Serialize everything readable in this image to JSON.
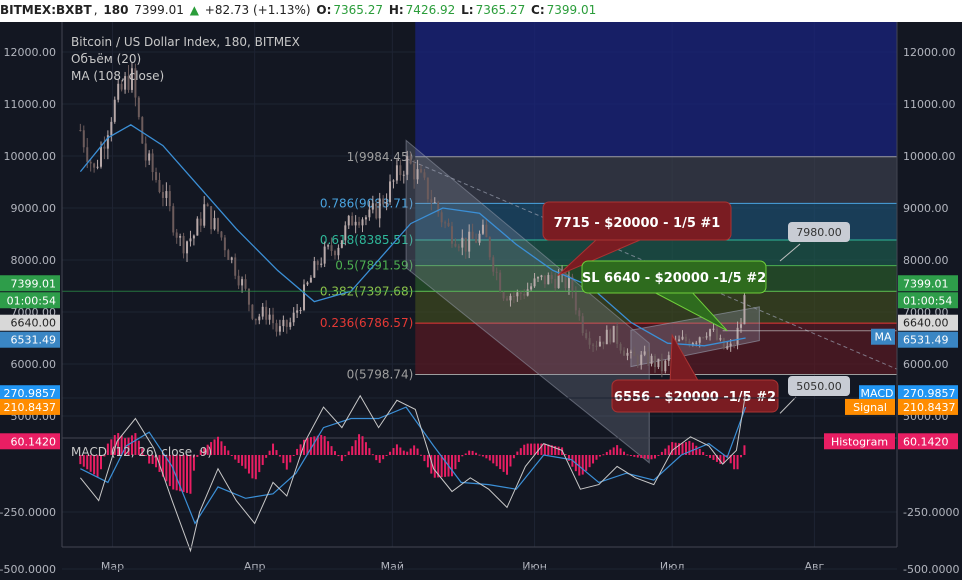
{
  "header": {
    "symbol": "BITMEX:BXBT",
    "interval": "180",
    "last": "7399.01",
    "change": "+82.73 (+1.13%)",
    "o_label": "O:",
    "o": "7365.27",
    "h_label": "H:",
    "h": "7426.92",
    "l_label": "L:",
    "l": "7365.27",
    "c_label": "C:",
    "c": "7399.01"
  },
  "legend": {
    "title": "Bitcoin / US Dollar Index, 180, BITMEX",
    "volume": "Объём (20)",
    "ma": "MA (108, close)",
    "macd": "MACD (12, 26, close, 9)"
  },
  "chart_data": [
    {
      "type": "candlestick",
      "title": "Bitcoin / US Dollar Index, 180, BITMEX",
      "ylim": [
        4500,
        12500
      ],
      "y_ticks": [
        "12000.00",
        "11000.00",
        "10000.00",
        "9000.00",
        "8000.00",
        "7000.00",
        "6000.00",
        "5000.00"
      ],
      "x_ticks": [
        "Мар",
        "Апр",
        "Май",
        "Июн",
        "Июл",
        "Авг"
      ],
      "price_path": [
        [
          "2018-02-22",
          10500
        ],
        [
          "2018-02-25",
          9700
        ],
        [
          "2018-03-01",
          10900
        ],
        [
          "2018-03-05",
          11600
        ],
        [
          "2018-03-08",
          10000
        ],
        [
          "2018-03-12",
          9300
        ],
        [
          "2018-03-16",
          8300
        ],
        [
          "2018-03-19",
          8500
        ],
        [
          "2018-03-21",
          9000
        ],
        [
          "2018-03-25",
          8400
        ],
        [
          "2018-03-29",
          7600
        ],
        [
          "2018-04-01",
          6900
        ],
        [
          "2018-04-04",
          7000
        ],
        [
          "2018-04-06",
          6600
        ],
        [
          "2018-04-09",
          6800
        ],
        [
          "2018-04-12",
          7400
        ],
        [
          "2018-04-15",
          8000
        ],
        [
          "2018-04-19",
          8300
        ],
        [
          "2018-04-23",
          8900
        ],
        [
          "2018-04-26",
          8800
        ],
        [
          "2018-04-30",
          9300
        ],
        [
          "2018-05-04",
          9900
        ],
        [
          "2018-05-06",
          9700
        ],
        [
          "2018-05-10",
          9100
        ],
        [
          "2018-05-13",
          8600
        ],
        [
          "2018-05-17",
          8300
        ],
        [
          "2018-05-21",
          8500
        ],
        [
          "2018-05-25",
          7400
        ],
        [
          "2018-05-28",
          7300
        ],
        [
          "2018-06-02",
          7600
        ],
        [
          "2018-06-06",
          7650
        ],
        [
          "2018-06-09",
          7500
        ],
        [
          "2018-06-11",
          6800
        ],
        [
          "2018-06-14",
          6400
        ],
        [
          "2018-06-18",
          6600
        ],
        [
          "2018-06-22",
          6100
        ],
        [
          "2018-06-26",
          6100
        ],
        [
          "2018-06-29",
          5900
        ],
        [
          "2018-07-02",
          6400
        ],
        [
          "2018-07-06",
          6500
        ],
        [
          "2018-07-09",
          6700
        ],
        [
          "2018-07-12",
          6300
        ],
        [
          "2018-07-14",
          6300
        ],
        [
          "2018-07-16",
          6800
        ],
        [
          "2018-07-17",
          7400
        ]
      ],
      "ma": {
        "name": "MA (108, close)",
        "color": "#3b8fd6",
        "path": [
          [
            "2018-02-22",
            9700
          ],
          [
            "2018-02-28",
            10350
          ],
          [
            "2018-03-05",
            10600
          ],
          [
            "2018-03-12",
            10200
          ],
          [
            "2018-03-20",
            9400
          ],
          [
            "2018-03-28",
            8600
          ],
          [
            "2018-04-06",
            7800
          ],
          [
            "2018-04-14",
            7200
          ],
          [
            "2018-04-22",
            7400
          ],
          [
            "2018-04-28",
            8000
          ],
          [
            "2018-05-05",
            8700
          ],
          [
            "2018-05-12",
            9000
          ],
          [
            "2018-05-20",
            8900
          ],
          [
            "2018-05-28",
            8300
          ],
          [
            "2018-06-05",
            7800
          ],
          [
            "2018-06-13",
            7500
          ],
          [
            "2018-06-22",
            6800
          ],
          [
            "2018-06-30",
            6400
          ],
          [
            "2018-07-08",
            6350
          ],
          [
            "2018-07-17",
            6500
          ]
        ]
      },
      "fibonacci": [
        {
          "label": "1(9984.45)",
          "value": 9984.45,
          "color": "#9e9e9e"
        },
        {
          "label": "0.786(9088.71)",
          "value": 9088.71,
          "color": "#4aa3df"
        },
        {
          "label": "0.618(8385.51)",
          "value": 8385.51,
          "color": "#2fb89a"
        },
        {
          "label": "0.5(7891.59)",
          "value": 7891.59,
          "color": "#4caf50"
        },
        {
          "label": "0.382(7397.68)",
          "value": 7397.68,
          "color": "#8bc34a"
        },
        {
          "label": "0.236(6786.57)",
          "value": 6786.57,
          "color": "#e53935"
        },
        {
          "label": "0(5798.74)",
          "value": 5798.74,
          "color": "#9e9e9e"
        }
      ],
      "annotations": [
        {
          "text": "7715 - $20000 - 1/5 #1",
          "price": 7715,
          "style": "red"
        },
        {
          "text": "SL 6640 - $20000 -1/5 #2",
          "price": 6640,
          "style": "green"
        },
        {
          "text": "6556 - $20000 -1/5 #2",
          "price": 6556,
          "style": "red"
        },
        {
          "text": "7980.00",
          "price": 7980,
          "style": "grey"
        },
        {
          "text": "5050.00",
          "price": 5050,
          "style": "grey"
        }
      ],
      "price_labels": [
        {
          "text": "7399.01",
          "color": "#2e9d4a"
        },
        {
          "text": "01:00:54",
          "color": "#2e9d4a"
        },
        {
          "text": "6640.00",
          "color": "#d8d8d8"
        },
        {
          "text": "6531.49",
          "color": "#3a86c4"
        }
      ],
      "ma_tag": "MA"
    },
    {
      "type": "line",
      "title": "MACD (12, 26, close, 9)",
      "ylim": [
        -550,
        330
      ],
      "y_ticks": [
        "250.0000",
        "-250.0000",
        "-500.0000"
      ],
      "value_labels": [
        {
          "name": "MACD",
          "text": "270.9857",
          "color": "#2196f3"
        },
        {
          "name": "Signal",
          "text": "210.8437",
          "color": "#ff8c00"
        },
        {
          "name": "Histogram",
          "text": "60.1420",
          "color": "#e91e63"
        }
      ],
      "macd_path": [
        [
          "2018-02-22",
          -100
        ],
        [
          "2018-02-26",
          -200
        ],
        [
          "2018-03-02",
          60
        ],
        [
          "2018-03-06",
          160
        ],
        [
          "2018-03-10",
          30
        ],
        [
          "2018-03-14",
          -200
        ],
        [
          "2018-03-18",
          -420
        ],
        [
          "2018-03-20",
          -250
        ],
        [
          "2018-03-24",
          -60
        ],
        [
          "2018-03-28",
          -200
        ],
        [
          "2018-04-01",
          -300
        ],
        [
          "2018-04-05",
          -120
        ],
        [
          "2018-04-08",
          -180
        ],
        [
          "2018-04-12",
          60
        ],
        [
          "2018-04-16",
          210
        ],
        [
          "2018-04-20",
          120
        ],
        [
          "2018-04-24",
          260
        ],
        [
          "2018-04-28",
          120
        ],
        [
          "2018-05-02",
          240
        ],
        [
          "2018-05-06",
          200
        ],
        [
          "2018-05-10",
          -60
        ],
        [
          "2018-05-14",
          -160
        ],
        [
          "2018-05-18",
          -100
        ],
        [
          "2018-05-22",
          -150
        ],
        [
          "2018-05-26",
          -230
        ],
        [
          "2018-05-30",
          -50
        ],
        [
          "2018-06-03",
          50
        ],
        [
          "2018-06-07",
          20
        ],
        [
          "2018-06-11",
          -150
        ],
        [
          "2018-06-15",
          -130
        ],
        [
          "2018-06-19",
          -50
        ],
        [
          "2018-06-23",
          -100
        ],
        [
          "2018-06-27",
          -130
        ],
        [
          "2018-07-01",
          20
        ],
        [
          "2018-07-05",
          80
        ],
        [
          "2018-07-09",
          40
        ],
        [
          "2018-07-12",
          -40
        ],
        [
          "2018-07-15",
          20
        ],
        [
          "2018-07-17",
          270
        ]
      ],
      "signal_path": [
        [
          "2018-02-22",
          -60
        ],
        [
          "2018-02-28",
          -120
        ],
        [
          "2018-03-04",
          40
        ],
        [
          "2018-03-09",
          100
        ],
        [
          "2018-03-14",
          -50
        ],
        [
          "2018-03-19",
          -300
        ],
        [
          "2018-03-24",
          -140
        ],
        [
          "2018-03-30",
          -190
        ],
        [
          "2018-04-05",
          -170
        ],
        [
          "2018-04-10",
          -80
        ],
        [
          "2018-04-16",
          120
        ],
        [
          "2018-04-22",
          160
        ],
        [
          "2018-04-28",
          160
        ],
        [
          "2018-05-04",
          210
        ],
        [
          "2018-05-10",
          40
        ],
        [
          "2018-05-16",
          -120
        ],
        [
          "2018-05-22",
          -130
        ],
        [
          "2018-05-28",
          -150
        ],
        [
          "2018-06-03",
          0
        ],
        [
          "2018-06-09",
          -20
        ],
        [
          "2018-06-15",
          -120
        ],
        [
          "2018-06-21",
          -80
        ],
        [
          "2018-06-27",
          -110
        ],
        [
          "2018-07-03",
          0
        ],
        [
          "2018-07-09",
          50
        ],
        [
          "2018-07-13",
          -10
        ],
        [
          "2018-07-17",
          210
        ]
      ]
    }
  ]
}
